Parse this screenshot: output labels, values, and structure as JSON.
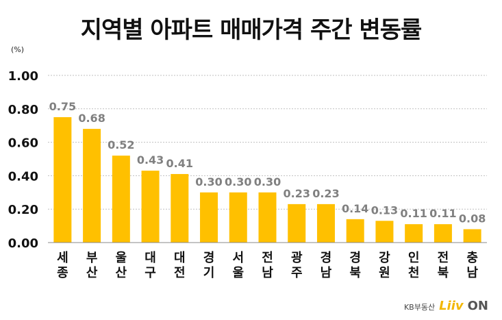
{
  "chart_data": {
    "type": "bar",
    "title": "지역별 아파트 매매가격 주간 변동률",
    "unit_label": "(%)",
    "categories": [
      "세종",
      "부산",
      "울산",
      "대구",
      "대전",
      "경기",
      "서울",
      "전남",
      "광주",
      "경남",
      "경북",
      "강원",
      "인천",
      "전북",
      "충남"
    ],
    "values": [
      0.75,
      0.68,
      0.52,
      0.43,
      0.41,
      0.3,
      0.3,
      0.3,
      0.23,
      0.23,
      0.14,
      0.13,
      0.11,
      0.11,
      0.08
    ],
    "value_labels": [
      "0.75",
      "0.68",
      "0.52",
      "0.43",
      "0.41",
      "0.30",
      "0.30",
      "0.30",
      "0.23",
      "0.23",
      "0.14",
      "0.13",
      "0.11",
      "0.11",
      "0.08"
    ],
    "yticks": [
      "0.00",
      "0.20",
      "0.40",
      "0.60",
      "0.80",
      "1.00"
    ],
    "ylim": [
      0,
      1.0
    ],
    "grid": true,
    "bar_color": "#ffc000",
    "value_label_color": "#808080"
  },
  "brand": {
    "kb": "KB부동산",
    "liiv": "Liiv",
    "on": "ON"
  }
}
